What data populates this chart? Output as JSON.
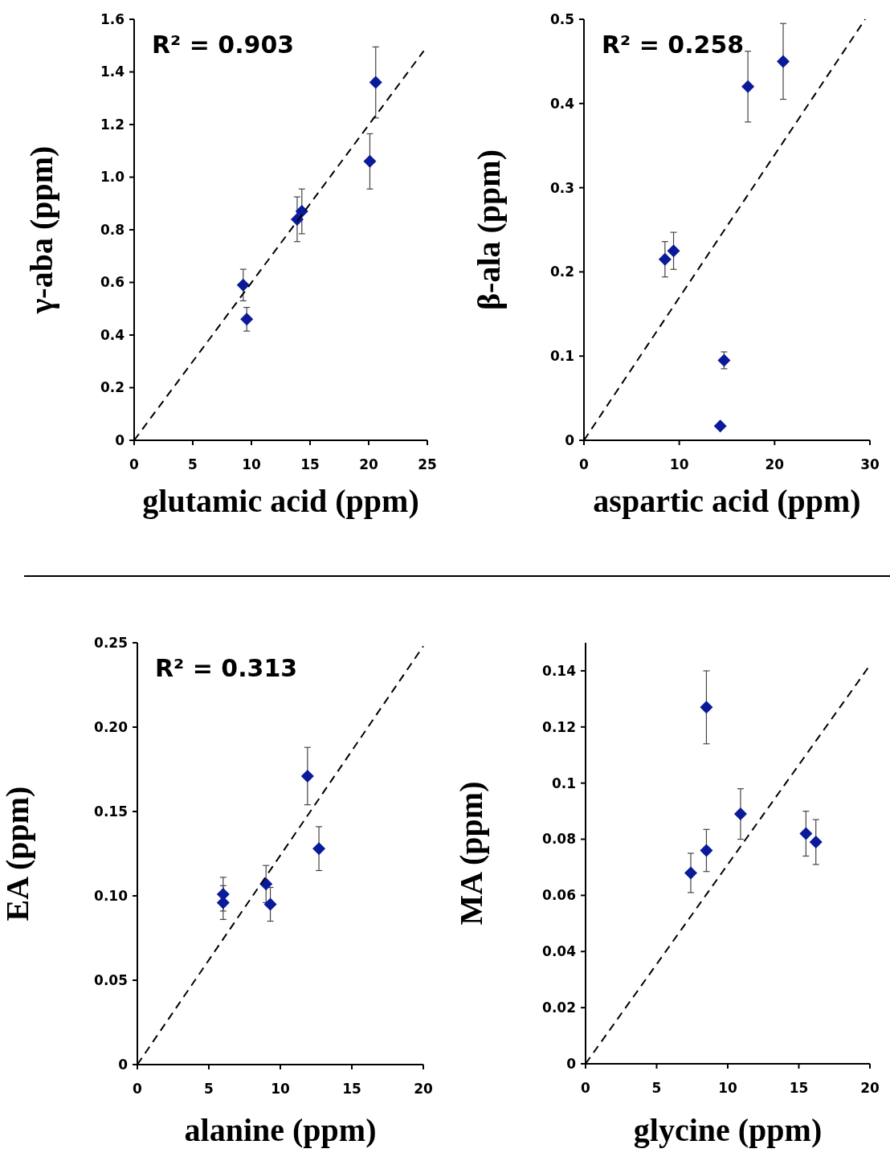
{
  "chart_data": [
    {
      "type": "scatter",
      "xlabel": "glutamic acid (ppm)",
      "ylabel": "γ-aba (ppm)",
      "annotations": [
        "R² = 0.903"
      ],
      "xlim": [
        0,
        25
      ],
      "xticks": [
        0,
        5,
        10,
        15,
        20,
        25
      ],
      "ylim": [
        0,
        1.6
      ],
      "yticks": [
        0,
        0.2,
        0.4,
        0.6,
        0.8,
        {
          "value": 1,
          "label": "1.0"
        },
        1.2,
        1.4,
        1.6
      ],
      "series": [
        {
          "marker": "diamond",
          "color": "#0a1a99",
          "x": [
            9.3,
            9.6,
            13.9,
            14.3,
            20.1,
            20.6
          ],
          "values": [
            0.59,
            0.46,
            0.84,
            0.87,
            1.06,
            1.36
          ],
          "errors": [
            0.06,
            0.045,
            0.085,
            0.085,
            0.105,
            0.135
          ]
        },
        {
          "type": "line",
          "marker": "none",
          "color": "#000000",
          "line_style": "dashed",
          "x": [
            0,
            24.7
          ],
          "values": [
            0,
            1.48
          ]
        }
      ]
    },
    {
      "type": "scatter",
      "xlabel": "aspartic acid (ppm)",
      "ylabel": "β-ala (ppm)",
      "annotations": [
        "R² = 0.258"
      ],
      "xlim": [
        0,
        30
      ],
      "xticks": [
        0,
        10,
        20,
        30
      ],
      "ylim": [
        0,
        0.5
      ],
      "yticks": [
        0,
        0.1,
        0.2,
        0.3,
        0.4,
        0.5
      ],
      "series": [
        {
          "marker": "diamond",
          "color": "#0a1a99",
          "x": [
            8.5,
            9.4,
            14.3,
            14.7,
            17.2,
            20.9
          ],
          "values": [
            0.215,
            0.225,
            0.017,
            0.095,
            0.42,
            0.45
          ],
          "errors": [
            0.021,
            0.022,
            null,
            0.01,
            0.042,
            0.045
          ]
        },
        {
          "type": "line",
          "marker": "none",
          "color": "#000000",
          "line_style": "dashed",
          "x": [
            0,
            29.5
          ],
          "values": [
            0,
            0.5
          ]
        }
      ]
    },
    {
      "type": "scatter",
      "xlabel": "alanine (ppm)",
      "ylabel": "EA (ppm)",
      "annotations": [
        "R² = 0.313"
      ],
      "xlim": [
        0,
        20
      ],
      "xticks": [
        0,
        5,
        10,
        15,
        20
      ],
      "ylim": [
        0,
        0.25
      ],
      "yticks": [
        0,
        0.05,
        {
          "value": 0.1,
          "label": "0.10"
        },
        0.15,
        {
          "value": 0.2,
          "label": "0.20"
        },
        0.25
      ],
      "series": [
        {
          "marker": "diamond",
          "color": "#0a1a99",
          "x": [
            6,
            6,
            9,
            9.3,
            11.9,
            12.7
          ],
          "values": [
            0.101,
            0.096,
            0.107,
            0.095,
            0.171,
            0.128
          ],
          "errors": [
            0.01,
            0.01,
            0.011,
            0.01,
            0.017,
            0.013
          ]
        },
        {
          "type": "line",
          "marker": "none",
          "color": "#000000",
          "line_style": "dashed",
          "x": [
            0,
            20
          ],
          "values": [
            0,
            0.248
          ]
        }
      ]
    },
    {
      "type": "scatter",
      "xlabel": "glycine (ppm)",
      "ylabel": "MA (ppm)",
      "xlim": [
        0,
        20
      ],
      "xticks": [
        0,
        5,
        10,
        15,
        20
      ],
      "ylim": [
        0,
        0.15
      ],
      "yticks": [
        0,
        0.02,
        0.04,
        0.06,
        0.08,
        0.1,
        0.12,
        0.14
      ],
      "series": [
        {
          "marker": "diamond",
          "color": "#0a1a99",
          "x": [
            7.4,
            8.5,
            8.5,
            10.9,
            15.5,
            16.2
          ],
          "values": [
            0.068,
            0.076,
            0.127,
            0.089,
            0.082,
            0.079
          ],
          "errors": [
            0.007,
            0.0075,
            0.013,
            0.009,
            0.008,
            0.008
          ]
        },
        {
          "type": "line",
          "marker": "none",
          "color": "#000000",
          "line_style": "dashed",
          "x": [
            0,
            20
          ],
          "values": [
            0,
            0.142
          ]
        }
      ]
    }
  ]
}
